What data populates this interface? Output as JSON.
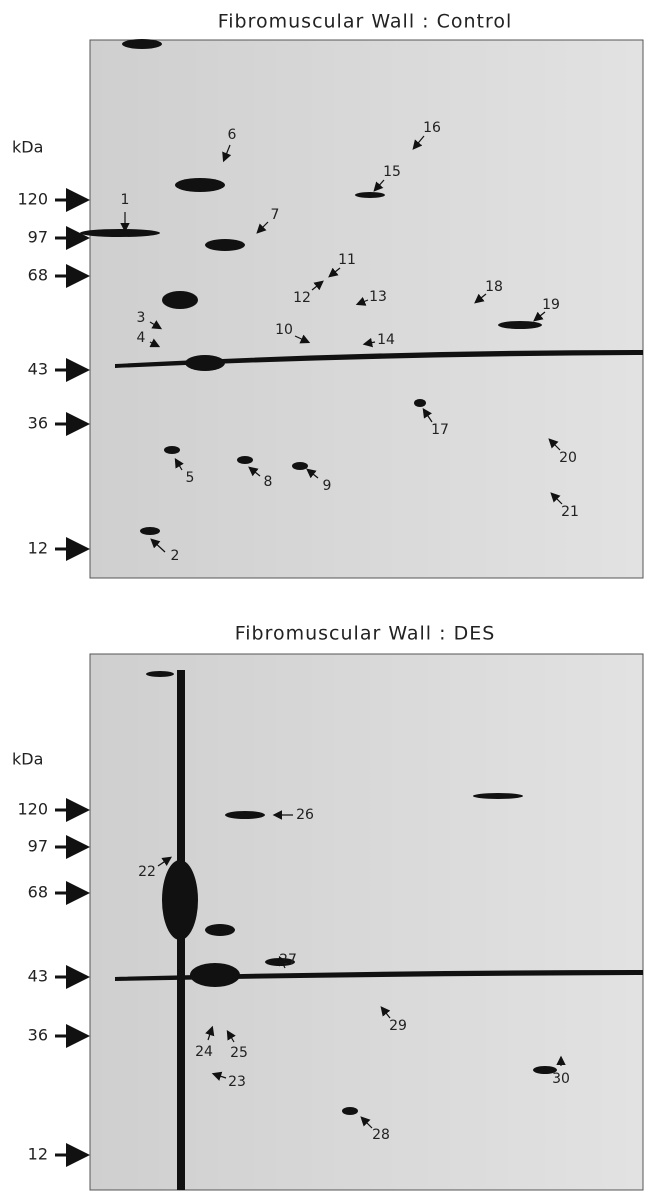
{
  "panels": [
    {
      "title": "Fibromuscular Wall :  Control",
      "unit": "kDa",
      "markers": [
        120,
        97,
        68,
        43,
        36,
        12
      ],
      "spots": [
        "1",
        "2",
        "3",
        "4",
        "5",
        "6",
        "7",
        "8",
        "9",
        "10",
        "11",
        "12",
        "13",
        "14",
        "15",
        "16",
        "17",
        "18",
        "19",
        "20",
        "21"
      ]
    },
    {
      "title": "Fibromuscular Wall :  DES",
      "unit": "kDa",
      "markers": [
        120,
        97,
        68,
        43,
        36,
        12
      ],
      "spots": [
        "22",
        "23",
        "24",
        "25",
        "26",
        "27",
        "28",
        "29",
        "30"
      ]
    }
  ]
}
